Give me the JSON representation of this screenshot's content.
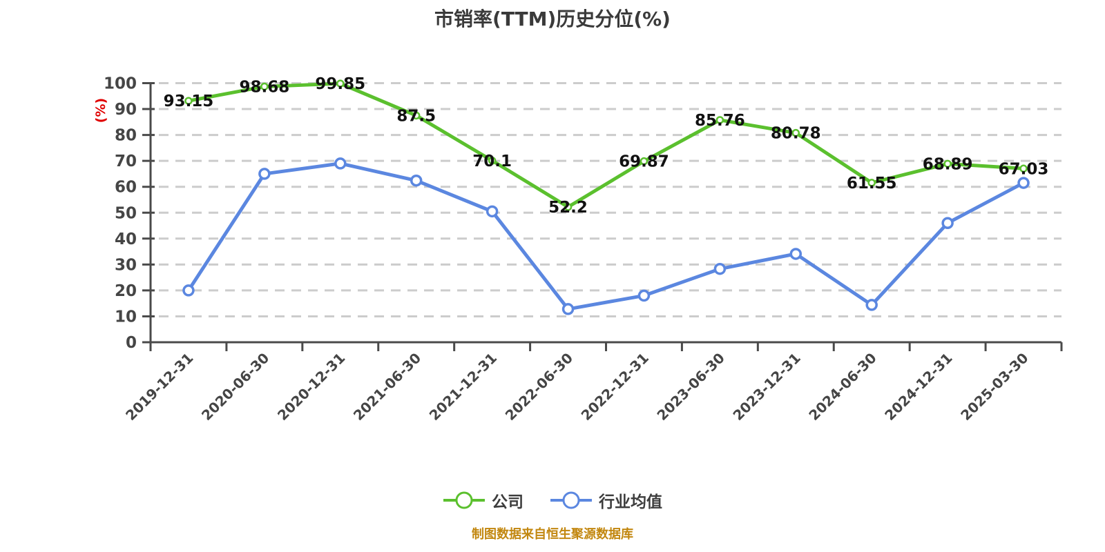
{
  "chart_data": {
    "type": "line",
    "title": "市销率(TTM)历史分位(%)",
    "y_axis_unit_label": "(%)",
    "xlabel": "",
    "ylabel": "(%)",
    "ylim": [
      0,
      100
    ],
    "y_ticks": [
      0,
      10,
      20,
      30,
      40,
      50,
      60,
      70,
      80,
      90,
      100
    ],
    "grid": "horizontal-dashed",
    "legend_position": "bottom",
    "categories": [
      "2019-12-31",
      "2020-06-30",
      "2020-12-31",
      "2021-06-30",
      "2021-12-31",
      "2022-06-30",
      "2022-12-31",
      "2023-06-30",
      "2023-12-31",
      "2024-06-30",
      "2024-12-31",
      "2025-03-30"
    ],
    "series": [
      {
        "name": "行业均值",
        "color": "#5b87e0",
        "values": [
          20,
          65,
          69,
          62.4,
          50.5,
          12.8,
          18,
          28.3,
          34.1,
          14.4,
          46,
          61.5
        ],
        "labels_shown": false,
        "estimated": true,
        "marker_radius": 7,
        "marker_stroke": 3.5,
        "line_width": 5
      },
      {
        "name": "公司",
        "color": "#5bc02e",
        "values": [
          93.15,
          98.68,
          99.85,
          87.5,
          70.1,
          52.2,
          69.87,
          85.76,
          80.78,
          61.55,
          68.89,
          67.03
        ],
        "labels_shown": true,
        "estimated": false,
        "marker_radius": 4.5,
        "marker_stroke": 2.5,
        "line_width": 5
      }
    ]
  },
  "legend": {
    "items": [
      {
        "label": "公司",
        "color": "#5bc02e"
      },
      {
        "label": "行业均值",
        "color": "#5b87e0"
      }
    ]
  },
  "footer": {
    "source_note": "制图数据来自恒生聚源数据库"
  },
  "colors": {
    "title": "#3a3a3a",
    "axis": "#4a4a4a",
    "tick_label": "#454545",
    "grid": "#cccccc",
    "value_label": "#111111",
    "y_unit_label": "#e00000",
    "footer": "#c2870f"
  }
}
